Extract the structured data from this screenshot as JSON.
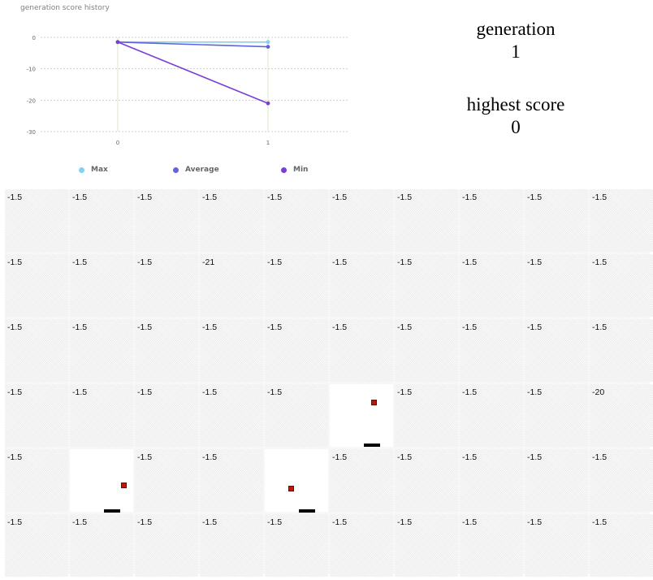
{
  "chart": {
    "title": "generation score history",
    "legend": [
      {
        "label": "Max",
        "color": "#7fd3f2"
      },
      {
        "label": "Average",
        "color": "#6262e0"
      },
      {
        "label": "Min",
        "color": "#7a3fd0"
      }
    ]
  },
  "chart_data": {
    "type": "line",
    "title": "generation score history",
    "x": [
      0,
      1
    ],
    "xticks": [
      "0",
      "1"
    ],
    "ylim": [
      -30,
      0
    ],
    "yticks": [
      "0",
      "-10",
      "-20",
      "-30"
    ],
    "grid": true,
    "legend_position": "bottom",
    "series": [
      {
        "name": "Max",
        "color": "#7fd3f2",
        "values": [
          -1.5,
          -1.5
        ]
      },
      {
        "name": "Average",
        "color": "#6262e0",
        "values": [
          -1.5,
          -3.0
        ]
      },
      {
        "name": "Min",
        "color": "#7a3fd0",
        "values": [
          -1.5,
          -21
        ]
      }
    ]
  },
  "stats": {
    "generation_label": "generation",
    "generation_value": "1",
    "highest_label": "highest score",
    "highest_value": "0"
  },
  "grid": {
    "rows": [
      [
        "-1.5",
        "-1.5",
        "-1.5",
        "-1.5",
        "-1.5",
        "-1.5",
        "-1.5",
        "-1.5",
        "-1.5",
        "-1.5"
      ],
      [
        "-1.5",
        "-1.5",
        "-1.5",
        "-21",
        "-1.5",
        "-1.5",
        "-1.5",
        "-1.5",
        "-1.5",
        "-1.5"
      ],
      [
        "-1.5",
        "-1.5",
        "-1.5",
        "-1.5",
        "-1.5",
        "-1.5",
        "-1.5",
        "-1.5",
        "-1.5",
        "-1.5"
      ],
      [
        "-1.5",
        "-1.5",
        "-1.5",
        "-1.5",
        "-1.5",
        "",
        "-1.5",
        "-1.5",
        "-1.5",
        "-20"
      ],
      [
        "-1.5",
        "",
        "-1.5",
        "-1.5",
        "",
        "-1.5",
        "-1.5",
        "-1.5",
        "-1.5",
        "-1.5"
      ],
      [
        "-1.5",
        "-1.5",
        "-1.5",
        "-1.5",
        "-1.5",
        "-1.5",
        "-1.5",
        "-1.5",
        "-1.5",
        "-1.5"
      ]
    ],
    "games": [
      {
        "row": 3,
        "col": 5
      },
      {
        "row": 4,
        "col": 1
      },
      {
        "row": 4,
        "col": 4
      }
    ]
  }
}
